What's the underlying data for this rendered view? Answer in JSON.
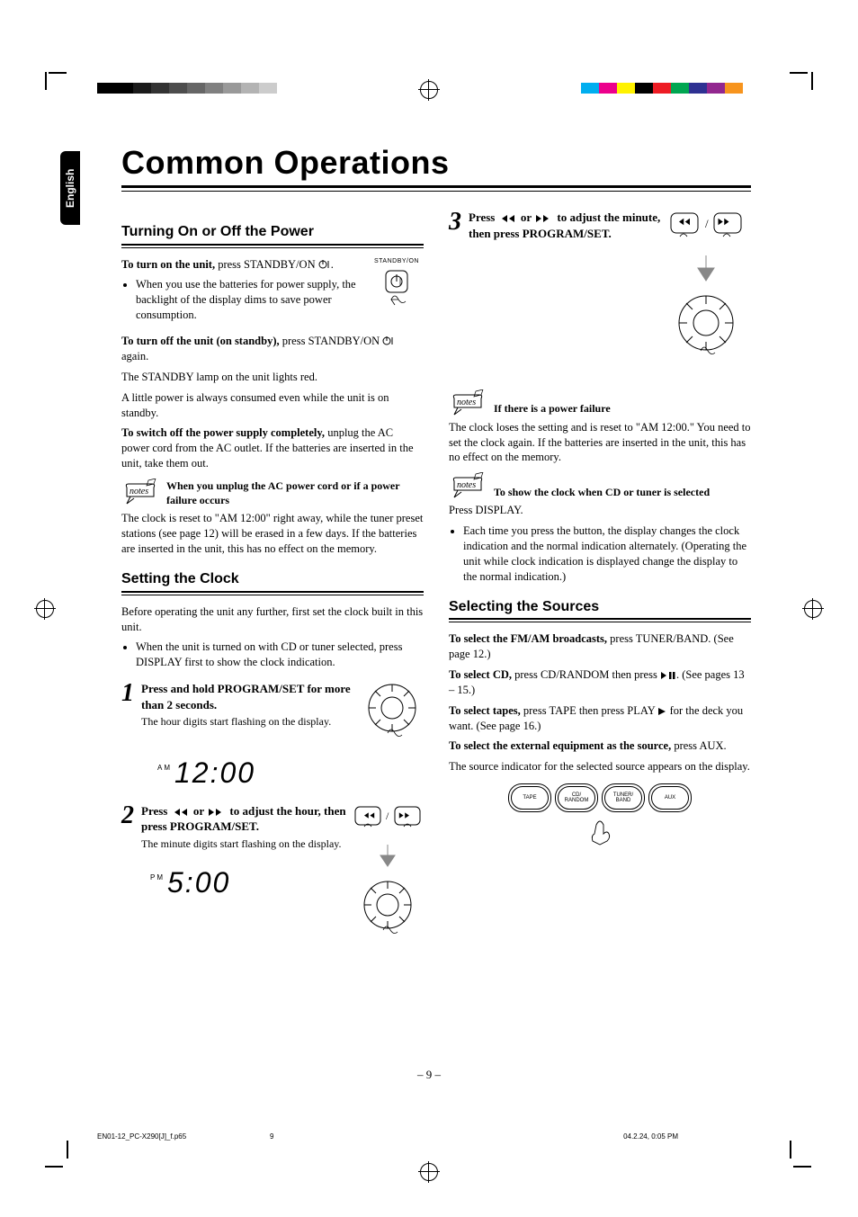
{
  "language_tab": "English",
  "title": "Common Operations",
  "page_number": "– 9 –",
  "footer": {
    "file": "EN01-12_PC-X290[J]_f.p65",
    "page": "9",
    "timestamp": "04.2.24, 0:05 PM"
  },
  "left_col": {
    "sec1_title": "Turning On or Off the Power",
    "turn_on_label": "To turn on the unit,",
    "turn_on_text": " press STANDBY/ON ",
    "turn_on_bullet": "When you use the batteries for power supply, the backlight of the display dims to save power consumption.",
    "standby_label": "STANDBY/ON",
    "turn_off_label": "To turn off the unit (on standby),",
    "turn_off_text": " press STANDBY/ON ",
    "turn_off_again": " again.",
    "standby_lamp": "The STANDBY lamp on the unit lights red.",
    "little_power": "A little power is always consumed even while the unit is on standby.",
    "switch_off_label": "To switch off the power supply completely,",
    "switch_off_text": " unplug the AC power cord from the AC outlet. If the batteries are inserted in the unit, take them out.",
    "note1_title": "When you unplug the AC power cord or if a power failure occurs",
    "note1_body": "The clock is reset to \"AM 12:00\" right away, while the tuner preset stations (see page 12) will be erased in a few days. If the batteries are inserted in the unit, this has no effect on the memory.",
    "sec2_title": "Setting the Clock",
    "clock_intro": "Before operating the unit any further, first set the clock built in this unit.",
    "clock_bullet": "When the unit is turned on with CD or tuner selected, press DISPLAY first to show the clock indication.",
    "step1_bold": "Press and hold PROGRAM/SET for more than 2 seconds.",
    "step1_sub": "The hour digits start flashing on the display.",
    "lcd1_ampm": "AM",
    "lcd1_time": "12:00",
    "step2_a": "Press ",
    "step2_b": " or ",
    "step2_c": " to adjust the hour, then press PROGRAM/SET.",
    "step2_sub": "The minute digits start flashing on the display.",
    "lcd2_ampm": "PM",
    "lcd2_time": "5:00"
  },
  "right_col": {
    "step3_a": "Press ",
    "step3_b": " or ",
    "step3_c": " to adjust the minute, then press PROGRAM/SET.",
    "note2_title": "If there is a power failure",
    "note2_body": "The clock loses the setting and is reset to \"AM 12:00.\" You need to set the clock again. If the batteries are inserted in the unit, this has no effect on the memory.",
    "note3_title": "To show the clock when CD or tuner is selected",
    "note3_press": "Press DISPLAY.",
    "note3_bullet": "Each time you press the button, the display changes the clock indication and the normal indication alternately. (Operating the unit while clock indication is displayed change the display to the normal indication.)",
    "sec3_title": "Selecting the Sources",
    "sel_fm_label": "To select the FM/AM broadcasts,",
    "sel_fm_text": " press TUNER/BAND. (See page 12.)",
    "sel_cd_label": "To select CD,",
    "sel_cd_text": " press CD/RANDOM then press ",
    "sel_cd_text2": ". (See pages 13 – 15.)",
    "sel_tape_label": "To select tapes,",
    "sel_tape_text": " press TAPE then press PLAY ",
    "sel_tape_text2": " for the deck you want. (See page 16.)",
    "sel_ext_label": "To select the external equipment as the source,",
    "sel_ext_text": " press AUX.",
    "source_indicator": "The source indicator for the selected source appears on the display.",
    "buttons": {
      "tape": "TAPE",
      "cd": "CD/\nRANDOM",
      "tuner": "TUNER/\nBAND",
      "aux": "AUX"
    }
  },
  "colorbar_left": [
    "#000000",
    "#000000",
    "#1a1a1a",
    "#333333",
    "#4d4d4d",
    "#666666",
    "#808080",
    "#999999",
    "#b3b3b3",
    "#cccccc",
    "#ffffff"
  ],
  "colorbar_right": [
    "#ffffff",
    "#00aeef",
    "#ec008c",
    "#fff200",
    "#000000",
    "#ed1c24",
    "#00a651",
    "#2e3192",
    "#92278f",
    "#f7941d",
    "#ffffff"
  ]
}
